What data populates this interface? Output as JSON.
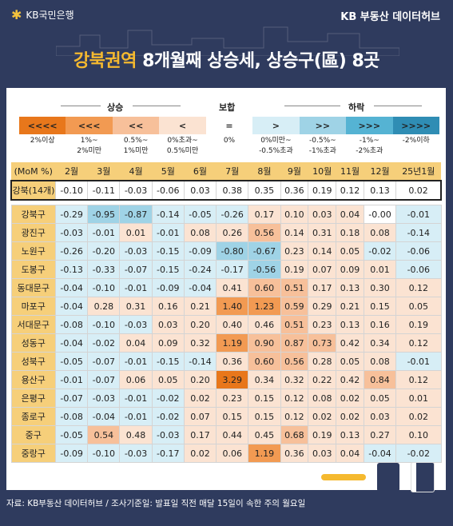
{
  "header": {
    "logo_text": "KB국민은행",
    "hub_text": "KB 부동산 데이터허브",
    "title_accent": "강북권역",
    "title_rest": "8개월째 상승세, 상승구(區) 8곳"
  },
  "legend": {
    "up": "상승",
    "flat": "보합",
    "down": "하락",
    "bars": [
      {
        "symbol": "<<<<",
        "color": "#e8771b",
        "label1": "2%이상",
        "label2": ""
      },
      {
        "symbol": "<<<",
        "color": "#f29a52",
        "label1": "1%~",
        "label2": "2%미만"
      },
      {
        "symbol": "<<",
        "color": "#f7c09a",
        "label1": "0.5%~",
        "label2": "1%미만"
      },
      {
        "symbol": "<",
        "color": "#fbe3d2",
        "label1": "0%초과~",
        "label2": "0.5%미만"
      },
      {
        "symbol": "=",
        "color": "#ffffff",
        "label1": "0%",
        "label2": ""
      },
      {
        "symbol": ">",
        "color": "#d7eef6",
        "label1": "0%미만~",
        "label2": "-0.5%초과"
      },
      {
        "symbol": ">>",
        "color": "#9fd3e6",
        "label1": "-0.5%~",
        "label2": "-1%초과"
      },
      {
        "symbol": ">>>",
        "color": "#55b3d3",
        "label1": "-1%~",
        "label2": "-2%초과"
      },
      {
        "symbol": ">>>>",
        "color": "#2f8db4",
        "label1": "-2%이하",
        "label2": ""
      }
    ]
  },
  "table": {
    "corner": "(MoM %)",
    "months": [
      "2월",
      "3월",
      "4월",
      "5월",
      "6월",
      "7월",
      "8월",
      "9월",
      "10월",
      "11월",
      "12월",
      "25년1월"
    ],
    "summary": {
      "name": "강북(14개)",
      "values": [
        "-0.10",
        "-0.11",
        "-0.03",
        "-0.06",
        "0.03",
        "0.38",
        "0.35",
        "0.36",
        "0.19",
        "0.12",
        "0.13",
        "0.02"
      ]
    },
    "rows": [
      {
        "name": "강북구",
        "values": [
          "-0.29",
          "-0.95",
          "-0.87",
          "-0.14",
          "-0.05",
          "-0.26",
          "0.17",
          "0.10",
          "0.03",
          "0.04",
          "-0.00",
          "-0.01"
        ]
      },
      {
        "name": "광진구",
        "values": [
          "-0.03",
          "-0.01",
          "0.01",
          "-0.01",
          "0.08",
          "0.26",
          "0.56",
          "0.14",
          "0.31",
          "0.18",
          "0.08",
          "-0.14"
        ]
      },
      {
        "name": "노원구",
        "values": [
          "-0.26",
          "-0.20",
          "-0.03",
          "-0.15",
          "-0.09",
          "-0.80",
          "-0.67",
          "0.23",
          "0.14",
          "0.05",
          "-0.02",
          "-0.06"
        ]
      },
      {
        "name": "도봉구",
        "values": [
          "-0.13",
          "-0.33",
          "-0.07",
          "-0.15",
          "-0.24",
          "-0.17",
          "-0.56",
          "0.19",
          "0.07",
          "0.09",
          "0.01",
          "-0.06"
        ]
      },
      {
        "name": "동대문구",
        "values": [
          "-0.04",
          "-0.10",
          "-0.01",
          "-0.09",
          "-0.04",
          "0.41",
          "0.60",
          "0.51",
          "0.17",
          "0.13",
          "0.30",
          "0.12"
        ]
      },
      {
        "name": "마포구",
        "values": [
          "-0.04",
          "0.28",
          "0.31",
          "0.16",
          "0.21",
          "1.40",
          "1.23",
          "0.59",
          "0.29",
          "0.21",
          "0.15",
          "0.05"
        ]
      },
      {
        "name": "서대문구",
        "values": [
          "-0.08",
          "-0.10",
          "-0.03",
          "0.03",
          "0.20",
          "0.40",
          "0.46",
          "0.51",
          "0.23",
          "0.13",
          "0.16",
          "0.19"
        ]
      },
      {
        "name": "성동구",
        "values": [
          "-0.04",
          "-0.02",
          "0.04",
          "0.09",
          "0.32",
          "1.19",
          "0.90",
          "0.87",
          "0.73",
          "0.42",
          "0.34",
          "0.12"
        ]
      },
      {
        "name": "성북구",
        "values": [
          "-0.05",
          "-0.07",
          "-0.01",
          "-0.15",
          "-0.14",
          "0.36",
          "0.60",
          "0.56",
          "0.28",
          "0.05",
          "0.08",
          "-0.01"
        ]
      },
      {
        "name": "용산구",
        "values": [
          "-0.01",
          "-0.07",
          "0.06",
          "0.05",
          "0.20",
          "3.29",
          "0.34",
          "0.32",
          "0.22",
          "0.42",
          "0.84",
          "0.12"
        ]
      },
      {
        "name": "은평구",
        "values": [
          "-0.07",
          "-0.03",
          "-0.01",
          "-0.02",
          "0.02",
          "0.23",
          "0.15",
          "0.12",
          "0.08",
          "0.02",
          "0.05",
          "0.01"
        ]
      },
      {
        "name": "종로구",
        "values": [
          "-0.08",
          "-0.04",
          "-0.01",
          "-0.02",
          "0.07",
          "0.15",
          "0.15",
          "0.12",
          "0.02",
          "0.02",
          "0.03",
          "0.02"
        ]
      },
      {
        "name": "중구",
        "values": [
          "-0.05",
          "0.54",
          "0.48",
          "-0.03",
          "0.17",
          "0.44",
          "0.45",
          "0.68",
          "0.19",
          "0.13",
          "0.27",
          "0.10"
        ]
      },
      {
        "name": "중랑구",
        "values": [
          "-0.09",
          "-0.10",
          "-0.03",
          "-0.17",
          "0.02",
          "0.06",
          "1.19",
          "0.36",
          "0.03",
          "0.04",
          "-0.04",
          "-0.02"
        ]
      }
    ]
  },
  "footer": "자료: KB부동산 데이터허브 / 조사기준일: 발표일 직전 매달 15일이 속한 주의 월요일"
}
